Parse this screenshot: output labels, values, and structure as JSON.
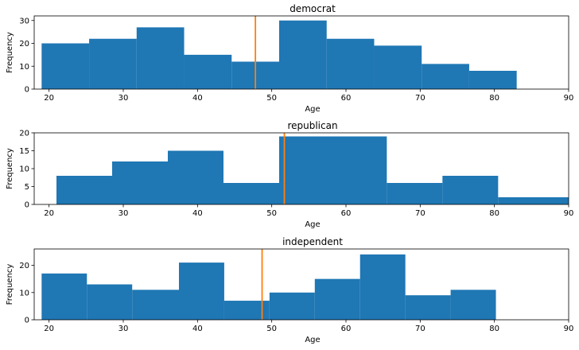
{
  "chart_data": [
    {
      "type": "bar",
      "title": "democrat",
      "xlabel": "Age",
      "ylabel": "Frequency",
      "xlim": [
        18,
        90
      ],
      "ylim": [
        0,
        32
      ],
      "xticks": [
        20,
        30,
        40,
        50,
        60,
        70,
        80,
        90
      ],
      "yticks": [
        0,
        10,
        20,
        30
      ],
      "bins": [
        {
          "x0": 19,
          "x1": 25.4,
          "count": 20
        },
        {
          "x0": 25.4,
          "x1": 31.8,
          "count": 22
        },
        {
          "x0": 31.8,
          "x1": 38.2,
          "count": 27
        },
        {
          "x0": 38.2,
          "x1": 44.6,
          "count": 15
        },
        {
          "x0": 44.6,
          "x1": 51.0,
          "count": 12
        },
        {
          "x0": 51.0,
          "x1": 57.4,
          "count": 30
        },
        {
          "x0": 57.4,
          "x1": 63.8,
          "count": 22
        },
        {
          "x0": 63.8,
          "x1": 70.2,
          "count": 19
        },
        {
          "x0": 70.2,
          "x1": 76.6,
          "count": 11
        },
        {
          "x0": 76.6,
          "x1": 83.0,
          "count": 8
        }
      ],
      "mean_line": 47.8,
      "bar_color": "#1f77b4",
      "line_color": "#ff7f0e"
    },
    {
      "type": "bar",
      "title": "republican",
      "xlabel": "Age",
      "ylabel": "Frequency",
      "xlim": [
        18,
        90
      ],
      "ylim": [
        0,
        20
      ],
      "xticks": [
        20,
        30,
        40,
        50,
        60,
        70,
        80,
        90
      ],
      "yticks": [
        0,
        5,
        10,
        15,
        20
      ],
      "bins": [
        {
          "x0": 21.0,
          "x1": 28.5,
          "count": 8
        },
        {
          "x0": 28.5,
          "x1": 36.0,
          "count": 12
        },
        {
          "x0": 36.0,
          "x1": 43.5,
          "count": 15
        },
        {
          "x0": 43.5,
          "x1": 51.0,
          "count": 6
        },
        {
          "x0": 51.0,
          "x1": 58.5,
          "count": 19
        },
        {
          "x0": 58.5,
          "x1": 65.5,
          "count": 19
        },
        {
          "x0": 65.5,
          "x1": 73.0,
          "count": 6
        },
        {
          "x0": 73.0,
          "x1": 80.5,
          "count": 8
        },
        {
          "x0": 80.5,
          "x1": 90.0,
          "count": 2
        }
      ],
      "mean_line": 51.7,
      "bar_color": "#1f77b4",
      "line_color": "#ff7f0e"
    },
    {
      "type": "bar",
      "title": "independent",
      "xlabel": "Age",
      "ylabel": "Frequency",
      "xlim": [
        18,
        90
      ],
      "ylim": [
        0,
        26
      ],
      "xticks": [
        20,
        30,
        40,
        50,
        60,
        70,
        80,
        90
      ],
      "yticks": [
        0,
        10,
        20
      ],
      "bins": [
        {
          "x0": 19.0,
          "x1": 25.1,
          "count": 17
        },
        {
          "x0": 25.1,
          "x1": 31.2,
          "count": 13
        },
        {
          "x0": 31.2,
          "x1": 37.5,
          "count": 11
        },
        {
          "x0": 37.5,
          "x1": 43.6,
          "count": 21
        },
        {
          "x0": 43.6,
          "x1": 49.7,
          "count": 7
        },
        {
          "x0": 49.7,
          "x1": 55.8,
          "count": 10
        },
        {
          "x0": 55.8,
          "x1": 61.9,
          "count": 15
        },
        {
          "x0": 61.9,
          "x1": 68.0,
          "count": 24
        },
        {
          "x0": 68.0,
          "x1": 74.1,
          "count": 9
        },
        {
          "x0": 74.1,
          "x1": 80.2,
          "count": 11
        }
      ],
      "mean_line": 48.7,
      "bar_color": "#1f77b4",
      "line_color": "#ff7f0e"
    }
  ]
}
